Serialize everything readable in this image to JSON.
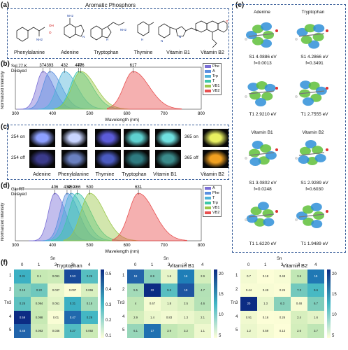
{
  "panel_a": {
    "letter": "(a)",
    "title": "Aromatic Phosphors",
    "molecules": [
      "Phenylalanine",
      "Adenine",
      "Tryptophan",
      "Thymine",
      "Vitamin B1",
      "Vitamin B2"
    ]
  },
  "panel_b": {
    "letter": "(b)",
    "condition": "Sol 77 K\nDelayed",
    "ylabel": "Normalized Intensity",
    "xlabel": "Wavelength (nm)",
    "xticks": [
      "300",
      "400",
      "500",
      "600",
      "700",
      "800"
    ],
    "peak_labels": [
      "374",
      "393",
      "432",
      "470",
      "476",
      "617"
    ],
    "legend": [
      "Phe",
      "A",
      "Trp",
      "T",
      "VB1",
      "VB2"
    ]
  },
  "panel_c": {
    "letter": "(c)",
    "left_labels": [
      "254 on",
      "254 off"
    ],
    "right_labels": [
      "365 on",
      "365 off"
    ],
    "names": [
      "Adenine",
      "Phenylalanine",
      "Thymine",
      "Tryptophan",
      "Vitamin B1",
      "Vitamin B2"
    ]
  },
  "panel_d": {
    "letter": "(d)",
    "condition": "Glu RT\nDelayed",
    "ylabel": "Normalized Intensity",
    "xlabel": "Wavelength (nm)",
    "xticks": [
      "300",
      "400",
      "500",
      "600",
      "700",
      "800"
    ],
    "peak_labels": [
      "406",
      "439",
      "450",
      "466",
      "500",
      "631"
    ],
    "legend": [
      "A",
      "Phe",
      "T",
      "Trp",
      "VB1",
      "VB2"
    ]
  },
  "panel_e": {
    "letter": "(e)",
    "col_titles": [
      "Adenine",
      "Tryptophan"
    ],
    "row1": [
      {
        "state": "S1 4.0886 eV",
        "f": "f=0.0013"
      },
      {
        "state": "S1 4.2866 eV",
        "f": "f=0.3491"
      }
    ],
    "row2": [
      "T1 2.9210 eV",
      "T1 2.7555 eV"
    ],
    "col_titles2": [
      "Vitamin B1",
      "Vitamin B2"
    ],
    "row3": [
      {
        "state": "S1 3.0802 eV",
        "f": "f=0.0248"
      },
      {
        "state": "S1 2.9289 eV",
        "f": "f=0.6030"
      }
    ],
    "row4": [
      "T1 1.6220 eV",
      "T1 1.9489 eV"
    ]
  },
  "panel_f": {
    "letter": "(f)",
    "xlabel": "Sn",
    "ylabel": "Tn",
    "heatmaps": [
      {
        "title": "Tryptophan",
        "values": [
          [
            "0.31",
            "0.1",
            "0.091",
            "0.53",
            "0.26"
          ],
          [
            "0.19",
            "0.22",
            "0.037",
            "0.007",
            "0.066"
          ],
          [
            "0.25",
            "0.094",
            "0.051",
            "0.31",
            "0.15"
          ],
          [
            "0.59",
            "0.098",
            "0.01",
            "0.47",
            "0.29"
          ],
          [
            "0.48",
            "0.083",
            "0.036",
            "0.27",
            "0.092"
          ]
        ],
        "cbar": [
          "0.5",
          "0.4",
          "0.3",
          "0.2",
          "0.1"
        ]
      },
      {
        "title": "Vitamin B1",
        "values": [
          [
            "18",
            "6.9",
            "1.6",
            "16",
            "2.9"
          ],
          [
            "5.5",
            "22",
            "9.6",
            "19",
            "4.7"
          ],
          [
            "4",
            "0.67",
            "1.8",
            "2.5",
            "4.6"
          ],
          [
            "2.9",
            "1.4",
            "0.83",
            "1.3",
            "2.1"
          ],
          [
            "6.1",
            "17",
            "3.9",
            "3.2",
            "1.1"
          ]
        ],
        "cbar": [
          "20",
          "15",
          "10",
          "5"
        ]
      },
      {
        "title": "Vitamin B2",
        "values": [
          [
            "0.7",
            "0.18",
            "0.48",
            "3.6",
            "15"
          ],
          [
            "0.44",
            "0.49",
            "0.26",
            "7.3",
            "9.6"
          ],
          [
            "20",
            "1.3",
            "6.3",
            "0.48",
            "6.7"
          ],
          [
            "0.91",
            "0.16",
            "0.26",
            "2.4",
            "1.6"
          ],
          [
            "1.2",
            "0.59",
            "0.13",
            "2.6",
            "3.7"
          ]
        ],
        "cbar": [
          "20",
          "15",
          "10",
          "5"
        ]
      }
    ],
    "col_idx": [
      "0",
      "1",
      "2",
      "3",
      "4"
    ],
    "row_idx": [
      "1",
      "2",
      "3",
      "4",
      "5"
    ]
  }
}
